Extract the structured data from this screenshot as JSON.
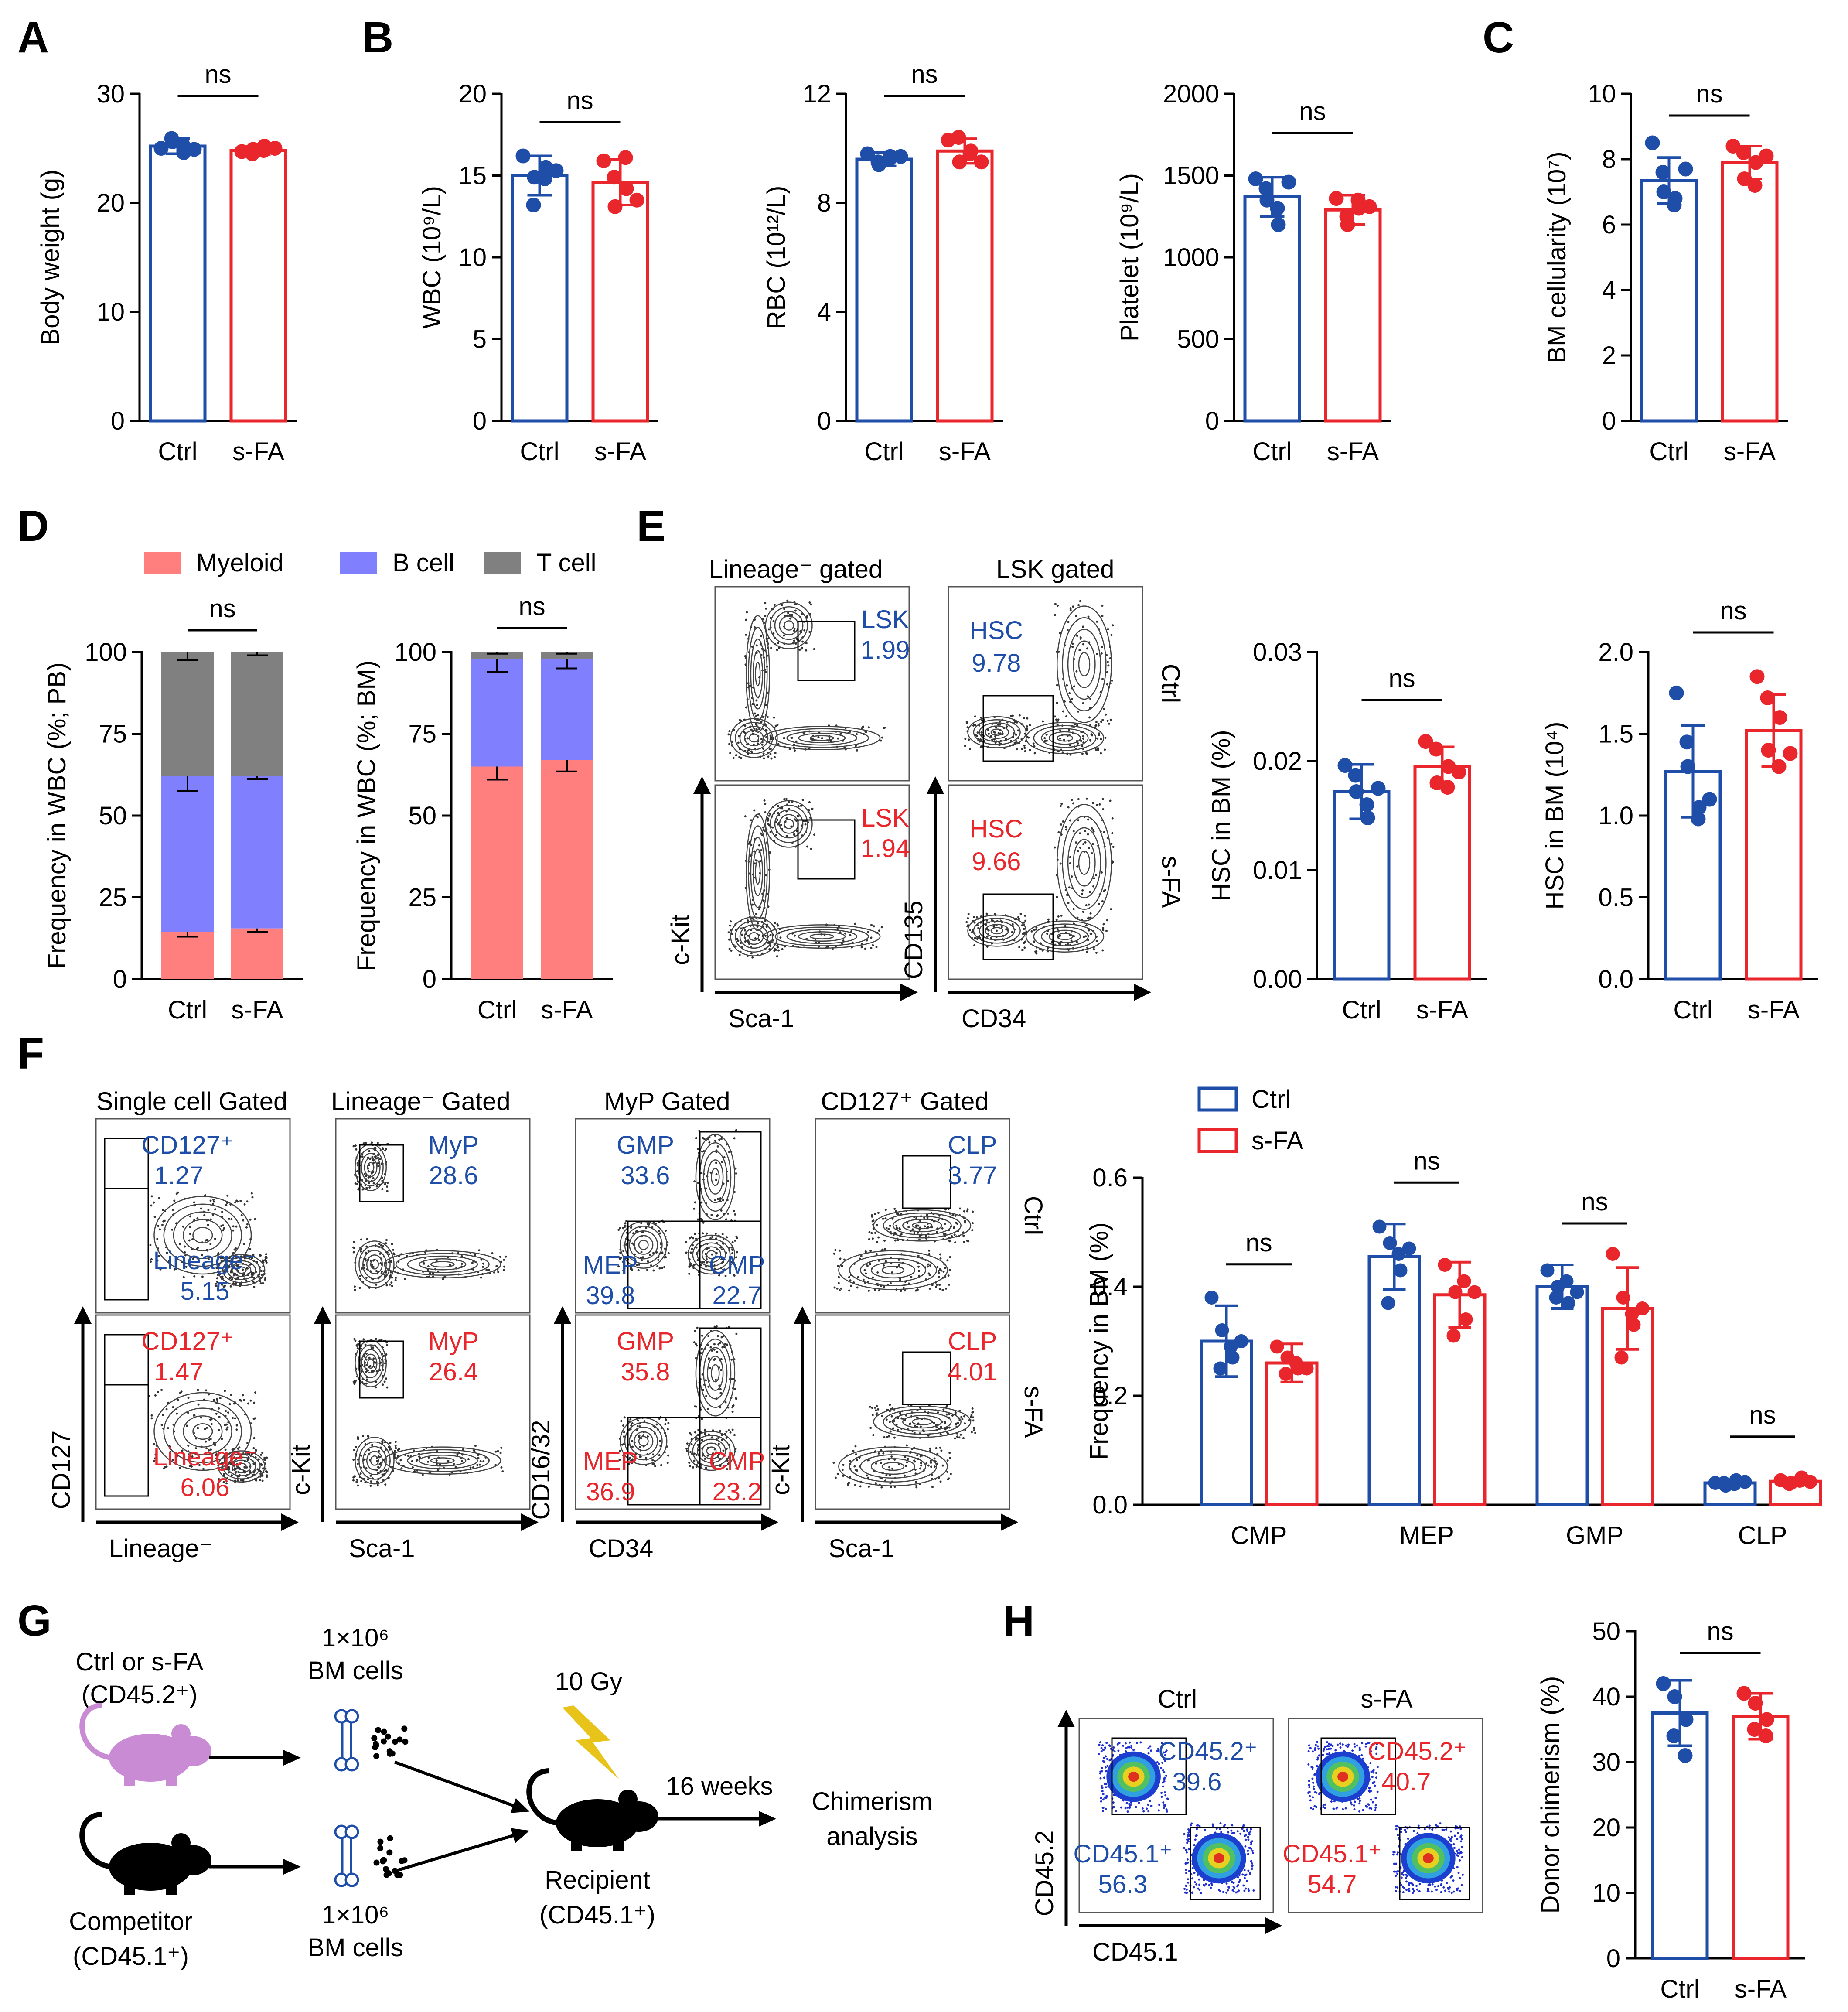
{
  "colors": {
    "ctrl": "#1f4ea8",
    "sfa": "#e8262b",
    "myeloid": "#ff7f7f",
    "bcell": "#8080ff",
    "tcell": "#808080",
    "lightning": "#e8c41a",
    "mouse_donor": "#c98bd4"
  },
  "panel_labels": [
    "A",
    "B",
    "C",
    "D",
    "E",
    "F",
    "G",
    "H"
  ],
  "ns": "ns",
  "groups": [
    "Ctrl",
    "s-FA"
  ],
  "panelA": {
    "ylabel": "Body weight (g)",
    "yticks": [
      "0",
      "10",
      "20",
      "30"
    ],
    "ylim": [
      0,
      30
    ],
    "means": [
      25.2,
      24.8
    ],
    "sd": [
      0.7,
      0.4
    ],
    "points": [
      [
        25.0,
        25.6,
        24.6,
        25.9,
        25.3,
        24.9
      ],
      [
        24.7,
        24.9,
        25.2,
        24.5,
        24.8,
        25.0
      ]
    ]
  },
  "panelB1": {
    "ylabel": "WBC (10⁹/L)",
    "yticks": [
      "0",
      "5",
      "10",
      "15",
      "20"
    ],
    "ylim": [
      0,
      20
    ],
    "means": [
      15.0,
      14.6
    ],
    "sd": [
      1.2,
      1.4
    ],
    "points": [
      [
        16.2,
        14.9,
        15.5,
        13.2,
        14.8,
        15.3
      ],
      [
        15.9,
        13.1,
        14.2,
        14.9,
        16.1,
        13.5
      ]
    ]
  },
  "panelB2": {
    "ylabel": "RBC (10¹²/L)",
    "yticks": [
      "0",
      "4",
      "8",
      "12"
    ],
    "ylim": [
      0,
      12
    ],
    "means": [
      9.6,
      9.9
    ],
    "sd": [
      0.25,
      0.45
    ],
    "points": [
      [
        9.8,
        9.4,
        9.7,
        9.5,
        9.6,
        9.7
      ],
      [
        10.3,
        9.5,
        9.9,
        10.4,
        9.8,
        9.5
      ]
    ]
  },
  "panelB3": {
    "ylabel": "Platelet (10⁹/L)",
    "yticks": [
      "0",
      "500",
      "1000",
      "1500",
      "2000"
    ],
    "ylim": [
      0,
      2000
    ],
    "means": [
      1370,
      1290
    ],
    "sd": [
      120,
      90
    ],
    "points": [
      [
        1480,
        1350,
        1200,
        1420,
        1300,
        1460
      ],
      [
        1360,
        1200,
        1300,
        1250,
        1350,
        1310
      ]
    ]
  },
  "panelC": {
    "ylabel": "BM cellularity (10⁷)",
    "yticks": [
      "0",
      "2",
      "4",
      "6",
      "8",
      "10"
    ],
    "ylim": [
      0,
      10
    ],
    "means": [
      7.35,
      7.9
    ],
    "sd": [
      0.7,
      0.5
    ],
    "points": [
      [
        8.5,
        7.0,
        6.8,
        7.6,
        6.6,
        7.7
      ],
      [
        8.4,
        7.4,
        7.9,
        8.2,
        7.2,
        8.1
      ]
    ]
  },
  "panelD": {
    "legend": [
      "Myeloid",
      "B cell",
      "T cell"
    ],
    "pb": {
      "ylabel": "Frequency in WBC (%; PB)",
      "yticks": [
        "0",
        "25",
        "50",
        "75",
        "100"
      ],
      "myeloid": [
        14.5,
        15.5
      ],
      "myeloid_sd": [
        1.5,
        1.0
      ],
      "bcell_top": [
        62,
        62
      ],
      "bcell_sd": [
        4.5,
        0.8
      ],
      "t_sd": [
        2.5,
        1.0
      ]
    },
    "bm": {
      "ylabel": "Frequency in WBC (%; BM)",
      "yticks": [
        "0",
        "25",
        "50",
        "75",
        "100"
      ],
      "myeloid": [
        65,
        67
      ],
      "myeloid_sd": [
        4,
        3.5
      ],
      "bcell_top": [
        98,
        98
      ],
      "bcell_sd": [
        4,
        3
      ],
      "t_sd": [
        0.5,
        0.5
      ]
    }
  },
  "panelE": {
    "col_titles": [
      "Lineage⁻ gated",
      "LSK gated"
    ],
    "row_labels": [
      "Ctrl",
      "s-FA"
    ],
    "axes1": [
      "Sca-1",
      "c-Kit"
    ],
    "axes2": [
      "CD34",
      "CD135"
    ],
    "ctrl_gates": [
      [
        "LSK",
        "1.99"
      ],
      [
        "HSC",
        "9.78"
      ]
    ],
    "sfa_gates": [
      [
        "LSK",
        "1.94"
      ],
      [
        "HSC",
        "9.66"
      ]
    ],
    "bar1": {
      "ylabel": "HSC in BM (%)",
      "yticks": [
        "0.00",
        "0.01",
        "0.02",
        "0.03"
      ],
      "ylim": [
        0,
        0.03
      ],
      "means": [
        0.0172,
        0.0195
      ],
      "sd": [
        0.0025,
        0.0018
      ],
      "points": [
        [
          0.0196,
          0.0172,
          0.0148,
          0.0187,
          0.016,
          0.0175
        ],
        [
          0.0218,
          0.018,
          0.0195,
          0.0211,
          0.0176,
          0.019
        ]
      ]
    },
    "bar2": {
      "ylabel": "HSC in BM (10⁴)",
      "yticks": [
        "0.0",
        "0.5",
        "1.0",
        "1.5",
        "2.0"
      ],
      "ylim": [
        0,
        2.0
      ],
      "means": [
        1.27,
        1.52
      ],
      "sd": [
        0.28,
        0.22
      ],
      "points": [
        [
          1.75,
          1.3,
          1.05,
          1.45,
          0.98,
          1.1
        ],
        [
          1.85,
          1.4,
          1.6,
          1.72,
          1.3,
          1.38
        ]
      ]
    }
  },
  "panelF": {
    "col_titles": [
      "Single cell Gated",
      "Lineage⁻ Gated",
      "MyP Gated",
      "CD127⁺ Gated"
    ],
    "row_labels": [
      "Ctrl",
      "s-FA"
    ],
    "axes": [
      [
        "Lineage⁻",
        "CD127"
      ],
      [
        "Sca-1",
        "c-Kit"
      ],
      [
        "CD34",
        "CD16/32"
      ],
      [
        "Sca-1",
        "c-Kit"
      ]
    ],
    "ctrl": {
      "cd127": [
        "CD127⁺",
        "1.27"
      ],
      "lin": [
        "Lineage⁻",
        "5.15"
      ],
      "myp": [
        "MyP",
        "28.6"
      ],
      "gmp": [
        "GMP",
        "33.6"
      ],
      "mep": [
        "MEP",
        "39.8"
      ],
      "cmp": [
        "CMP",
        "22.7"
      ],
      "clp": [
        "CLP",
        "3.77"
      ]
    },
    "sfa": {
      "cd127": [
        "CD127⁺",
        "1.47"
      ],
      "lin": [
        "Lineage⁻",
        "6.06"
      ],
      "myp": [
        "MyP",
        "26.4"
      ],
      "gmp": [
        "GMP",
        "35.8"
      ],
      "mep": [
        "MEP",
        "36.9"
      ],
      "cmp": [
        "CMP",
        "23.2"
      ],
      "clp": [
        "CLP",
        "4.01"
      ]
    },
    "bar": {
      "ylabel": "Frequency in BM (%)",
      "yticks": [
        "0.0",
        "0.2",
        "0.4",
        "0.6"
      ],
      "ylim": [
        0,
        0.6
      ],
      "categories": [
        "CMP",
        "MEP",
        "GMP",
        "CLP"
      ],
      "legend": [
        "Ctrl",
        "s-FA"
      ],
      "ctrl_means": [
        0.3,
        0.455,
        0.4,
        0.04
      ],
      "ctrl_sd": [
        0.065,
        0.06,
        0.04,
        0.005
      ],
      "sfa_means": [
        0.26,
        0.385,
        0.36,
        0.043
      ],
      "sfa_sd": [
        0.035,
        0.06,
        0.075,
        0.006
      ],
      "ctrl_points": [
        [
          0.38,
          0.32,
          0.27,
          0.25,
          0.29,
          0.3
        ],
        [
          0.51,
          0.48,
          0.43,
          0.37,
          0.46,
          0.47
        ],
        [
          0.43,
          0.4,
          0.37,
          0.38,
          0.41,
          0.39
        ],
        [
          0.04,
          0.035,
          0.045,
          0.04,
          0.038,
          0.042
        ]
      ],
      "sfa_points": [
        [
          0.29,
          0.27,
          0.25,
          0.24,
          0.26,
          0.25
        ],
        [
          0.44,
          0.39,
          0.34,
          0.31,
          0.41,
          0.39
        ],
        [
          0.46,
          0.38,
          0.33,
          0.27,
          0.35,
          0.36
        ],
        [
          0.045,
          0.04,
          0.05,
          0.038,
          0.044,
          0.042
        ]
      ]
    }
  },
  "panelG": {
    "donor": [
      "Ctrl or s-FA",
      "(CD45.2⁺)"
    ],
    "competitor": [
      "Competitor",
      "(CD45.1⁺)"
    ],
    "cells_top": [
      "1×10⁶",
      "BM cells"
    ],
    "cells_bottom": [
      "1×10⁶",
      "BM cells"
    ],
    "irradiation": "10 Gy",
    "recipient": [
      "Recipient",
      "(CD45.1⁺)"
    ],
    "time": "16 weeks",
    "outcome": [
      "Chimerism",
      "analysis"
    ]
  },
  "panelH": {
    "titles": [
      "Ctrl",
      "s-FA"
    ],
    "axes": [
      "CD45.1",
      "CD45.2"
    ],
    "ctrl": {
      "cd452": [
        "CD45.2⁺",
        "39.6"
      ],
      "cd451": [
        "CD45.1⁺",
        "56.3"
      ]
    },
    "sfa": {
      "cd452": [
        "CD45.2⁺",
        "40.7"
      ],
      "cd451": [
        "CD45.1⁺",
        "54.7"
      ]
    },
    "bar": {
      "ylabel": "Donor chimerism (%)",
      "yticks": [
        "0",
        "10",
        "20",
        "30",
        "40",
        "50"
      ],
      "ylim": [
        0,
        50
      ],
      "means": [
        37.5,
        37.0
      ],
      "sd": [
        5,
        3.5
      ],
      "points": [
        [
          42.0,
          40.0,
          36.5,
          34.0,
          31.0
        ],
        [
          40.5,
          39.0,
          36.5,
          35.0,
          34.0
        ]
      ]
    }
  }
}
